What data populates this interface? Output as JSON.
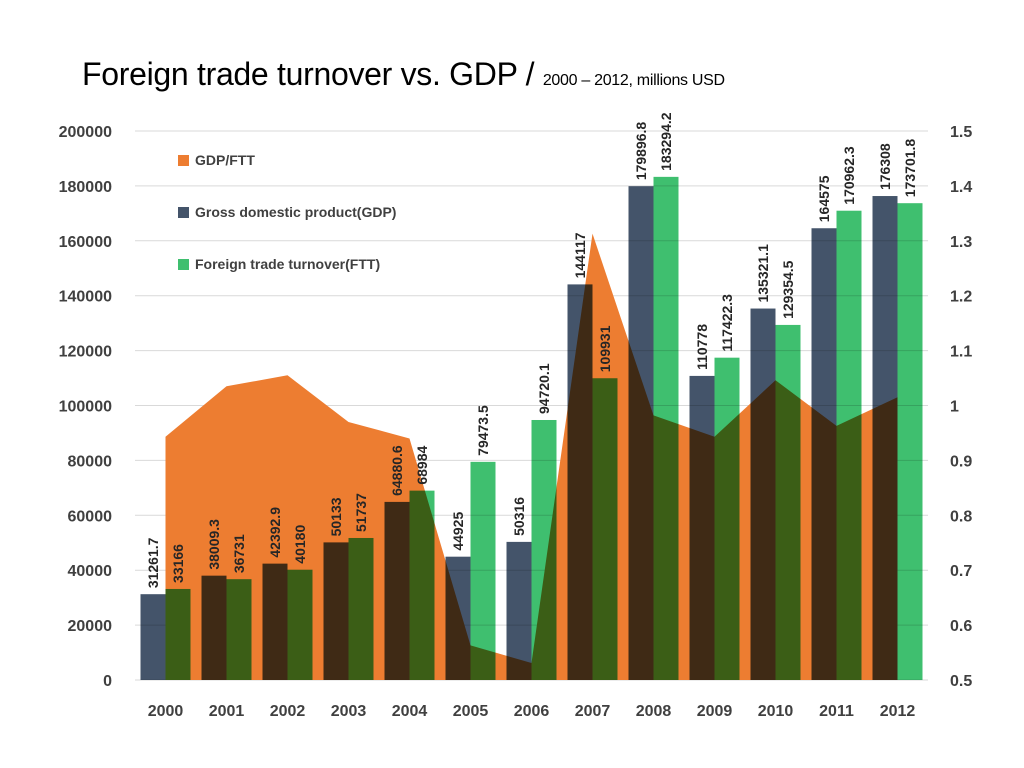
{
  "title": {
    "main": "Foreign trade turnover vs. GDP / ",
    "sub": "2000 – 2012, millions USD"
  },
  "chart_data": {
    "type": "bar",
    "title": "Foreign trade turnover vs. GDP / 2000 – 2012, millions USD",
    "categories": [
      "2000",
      "2001",
      "2002",
      "2003",
      "2004",
      "2005",
      "2006",
      "2007",
      "2008",
      "2009",
      "2010",
      "2011",
      "2012"
    ],
    "series": [
      {
        "name": "GDP/FTT",
        "kind": "area",
        "axis": "right",
        "color": "#ED7D31",
        "values": [
          0.943,
          1.035,
          1.055,
          0.97,
          0.94,
          0.563,
          0.531,
          1.313,
          0.982,
          0.943,
          1.046,
          0.963,
          1.015
        ]
      },
      {
        "name": "Gross domestic product(GDP)",
        "kind": "bar",
        "axis": "left",
        "color": "#44546A",
        "values": [
          31261.7,
          38009.3,
          42392.9,
          50133,
          64880.6,
          44925,
          50316,
          144117,
          179896.8,
          110778,
          135321.1,
          164575,
          176308
        ],
        "labels": [
          "31261.7",
          "38009.3",
          "42392.9",
          "50133",
          "64880.6",
          "44925",
          "50316",
          "144117",
          "179896.8",
          "110778",
          "135321.1",
          "164575",
          "176308"
        ]
      },
      {
        "name": "Foreign trade turnover(FTT)",
        "kind": "bar",
        "axis": "left",
        "color": "#3FBF6F",
        "values": [
          33166,
          36731,
          40180,
          51737,
          68984,
          79473.5,
          94720.1,
          109931,
          183294.2,
          117422.3,
          129354.5,
          170962.3,
          173701.8
        ],
        "labels": [
          "33166",
          "36731",
          "40180",
          "51737",
          "68984",
          "79473.5",
          "94720.1",
          "109931",
          "183294.2",
          "117422.3",
          "129354.5",
          "170962.3",
          "173701.8"
        ]
      }
    ],
    "y_left": {
      "range": [
        0,
        200000
      ],
      "ticks": [
        "0",
        "20000",
        "40000",
        "60000",
        "80000",
        "100000",
        "120000",
        "140000",
        "160000",
        "180000",
        "200000"
      ]
    },
    "y_right": {
      "range": [
        0.5,
        1.5
      ],
      "ticks": [
        "0.5",
        "0.6",
        "0.7",
        "0.8",
        "0.9",
        "1",
        "1.1",
        "1.2",
        "1.3",
        "1.4",
        "1.5"
      ]
    },
    "grid": true,
    "legend": "top-left",
    "blend_overlap": true
  }
}
